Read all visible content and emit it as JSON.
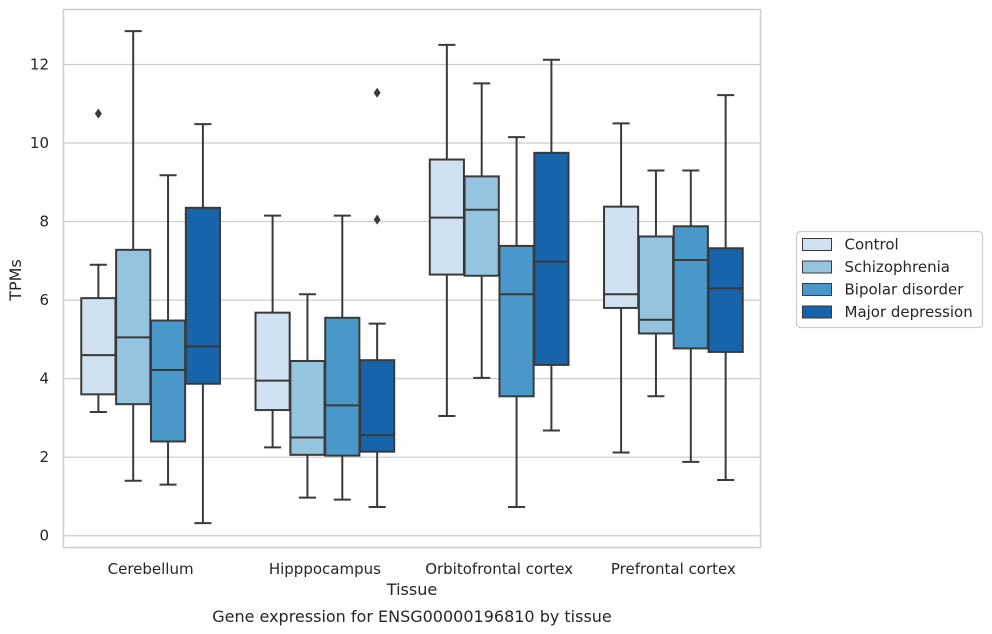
{
  "chart_data": {
    "type": "box",
    "title": "",
    "caption": "Gene expression for ENSG00000196810 by tissue",
    "xlabel": "Tissue",
    "ylabel": "TPMs",
    "ylim": [
      -0.3,
      13.4
    ],
    "yticks": [
      0,
      2,
      4,
      6,
      8,
      10,
      12
    ],
    "grid": "horizontal",
    "legend_position": "right",
    "categories": [
      "Cerebellum",
      "Hipppocampus",
      "Orbitofrontal cortex",
      "Prefrontal cortex"
    ],
    "series": [
      {
        "name": "Control",
        "color": "#d0e1f2",
        "boxes": [
          {
            "whislo": 3.15,
            "q1": 3.6,
            "med": 4.6,
            "q3": 6.05,
            "whishi": 6.9,
            "fliers": [
              10.75
            ]
          },
          {
            "whislo": 2.25,
            "q1": 3.2,
            "med": 3.95,
            "q3": 5.68,
            "whishi": 8.15,
            "fliers": []
          },
          {
            "whislo": 3.05,
            "q1": 6.65,
            "med": 8.1,
            "q3": 9.58,
            "whishi": 12.5,
            "fliers": []
          },
          {
            "whislo": 2.12,
            "q1": 5.8,
            "med": 6.15,
            "q3": 8.38,
            "whishi": 10.5,
            "fliers": []
          }
        ]
      },
      {
        "name": "Schizophrenia",
        "color": "#94c4df",
        "boxes": [
          {
            "whislo": 1.4,
            "q1": 3.35,
            "med": 5.05,
            "q3": 7.28,
            "whishi": 12.85,
            "fliers": []
          },
          {
            "whislo": 0.97,
            "q1": 2.06,
            "med": 2.5,
            "q3": 4.45,
            "whishi": 6.15,
            "fliers": []
          },
          {
            "whislo": 4.02,
            "q1": 6.62,
            "med": 8.3,
            "q3": 9.15,
            "whishi": 11.52,
            "fliers": []
          },
          {
            "whislo": 3.55,
            "q1": 5.15,
            "med": 5.5,
            "q3": 7.62,
            "whishi": 9.3,
            "fliers": []
          }
        ]
      },
      {
        "name": "Bipolar disorder",
        "color": "#4a98c9",
        "boxes": [
          {
            "whislo": 1.3,
            "q1": 2.4,
            "med": 4.22,
            "q3": 5.48,
            "whishi": 9.18,
            "fliers": []
          },
          {
            "whislo": 0.92,
            "q1": 2.04,
            "med": 3.32,
            "q3": 5.55,
            "whishi": 8.15,
            "fliers": []
          },
          {
            "whislo": 0.73,
            "q1": 3.55,
            "med": 6.15,
            "q3": 7.38,
            "whishi": 10.15,
            "fliers": []
          },
          {
            "whislo": 1.88,
            "q1": 4.77,
            "med": 7.02,
            "q3": 7.88,
            "whishi": 9.3,
            "fliers": []
          }
        ]
      },
      {
        "name": "Major depression",
        "color": "#1764ab",
        "boxes": [
          {
            "whislo": 0.32,
            "q1": 3.87,
            "med": 4.82,
            "q3": 8.35,
            "whishi": 10.48,
            "fliers": []
          },
          {
            "whislo": 0.73,
            "q1": 2.14,
            "med": 2.56,
            "q3": 4.47,
            "whishi": 5.4,
            "fliers": [
              8.05,
              11.28
            ]
          },
          {
            "whislo": 2.68,
            "q1": 4.35,
            "med": 6.98,
            "q3": 9.75,
            "whishi": 12.12,
            "fliers": []
          },
          {
            "whislo": 1.42,
            "q1": 4.68,
            "med": 6.3,
            "q3": 7.32,
            "whishi": 11.22,
            "fliers": []
          }
        ]
      }
    ]
  }
}
